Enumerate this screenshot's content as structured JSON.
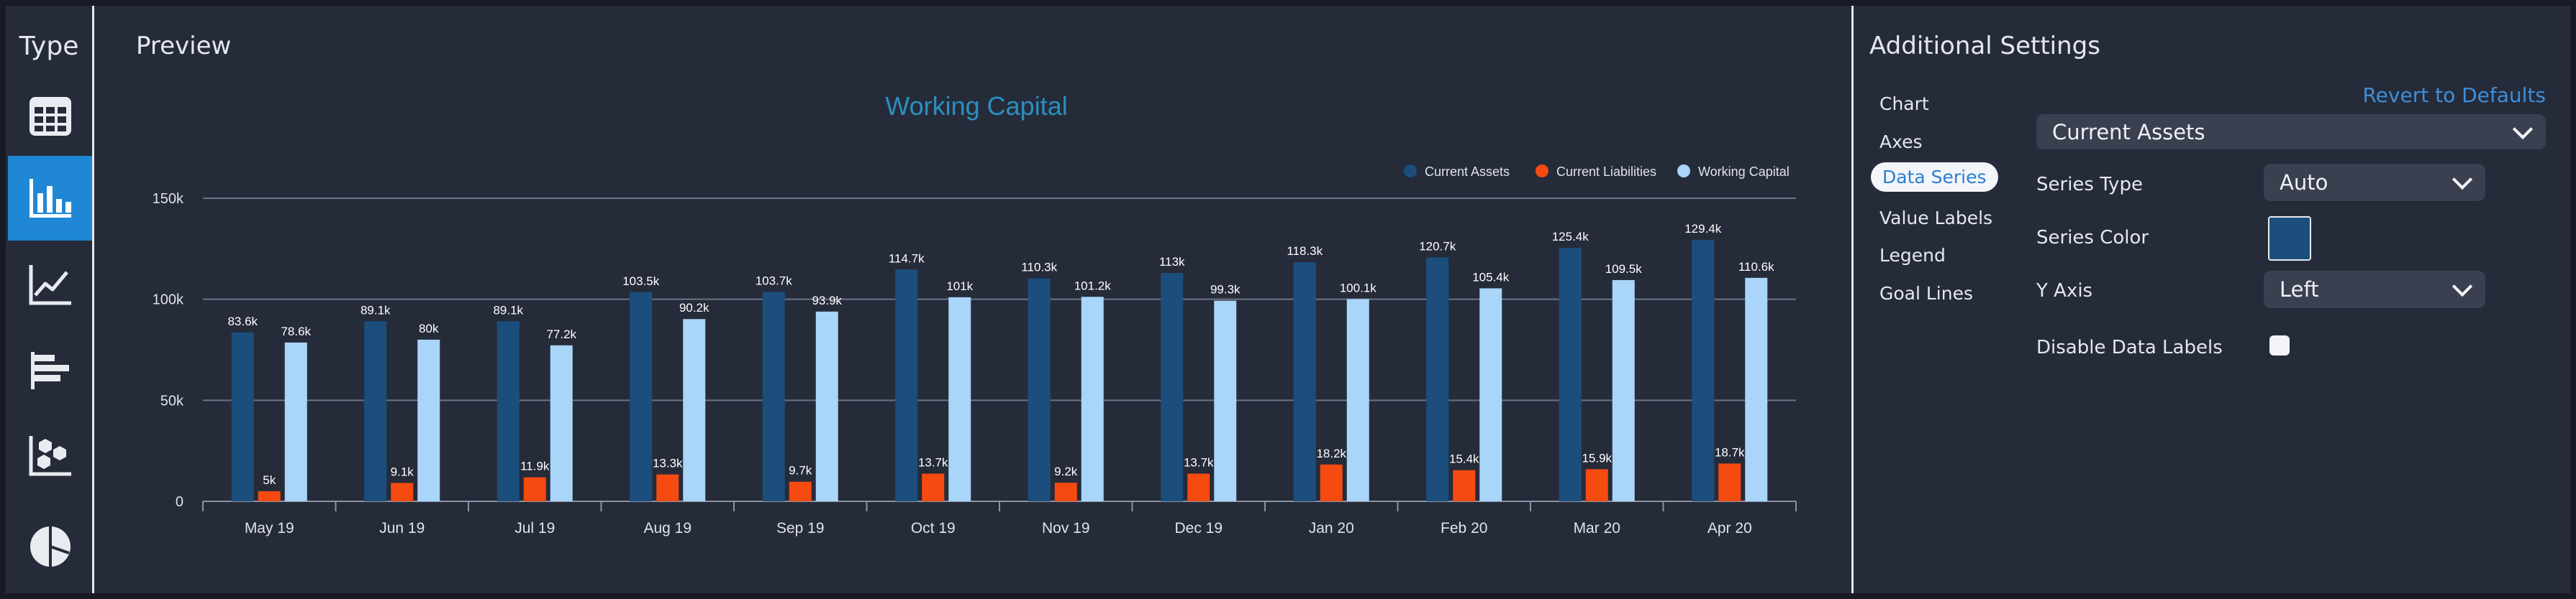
{
  "type_panel": {
    "title": "Type",
    "items": [
      {
        "name": "table-chart-icon",
        "active": false
      },
      {
        "name": "bar-chart-icon",
        "active": true
      },
      {
        "name": "line-chart-icon",
        "active": false
      },
      {
        "name": "horizontal-bar-chart-icon",
        "active": false
      },
      {
        "name": "scatter-chart-icon",
        "active": false
      },
      {
        "name": "pie-chart-icon",
        "active": false
      }
    ]
  },
  "preview": {
    "title": "Preview"
  },
  "chart_data": {
    "type": "bar",
    "title": "Working Capital",
    "categories": [
      "May 19",
      "Jun 19",
      "Jul 19",
      "Aug 19",
      "Sep 19",
      "Oct 19",
      "Nov 19",
      "Dec 19",
      "Jan 20",
      "Feb 20",
      "Mar 20",
      "Apr 20"
    ],
    "series": [
      {
        "name": "Current Assets",
        "color": "#1b4e7c",
        "values": [
          83.6,
          89.1,
          89.1,
          103.5,
          103.7,
          114.7,
          110.3,
          113,
          118.3,
          120.7,
          125.4,
          129.4
        ],
        "labels": [
          "83.6k",
          "89.1k",
          "89.1k",
          "103.5k",
          "103.7k",
          "114.7k",
          "110.3k",
          "113k",
          "118.3k",
          "120.7k",
          "125.4k",
          "129.4k"
        ]
      },
      {
        "name": "Current Liabilities",
        "color": "#f54a10",
        "values": [
          5,
          9.1,
          11.9,
          13.3,
          9.7,
          13.7,
          9.2,
          13.7,
          18.2,
          15.4,
          15.9,
          18.7
        ],
        "labels": [
          "5k",
          "9.1k",
          "11.9k",
          "13.3k",
          "9.7k",
          "13.7k",
          "9.2k",
          "13.7k",
          "18.2k",
          "15.4k",
          "15.9k",
          "18.7k"
        ]
      },
      {
        "name": "Working Capital",
        "color": "#a8d5f8",
        "values": [
          78.6,
          80,
          77.2,
          90.2,
          93.9,
          101,
          101.2,
          99.3,
          100.1,
          105.4,
          109.5,
          110.6
        ],
        "labels": [
          "78.6k",
          "80k",
          "77.2k",
          "90.2k",
          "93.9k",
          "101k",
          "101.2k",
          "99.3k",
          "100.1k",
          "105.4k",
          "109.5k",
          "110.6k"
        ]
      }
    ],
    "yticks": [
      0,
      50,
      100,
      150
    ],
    "ytick_labels": [
      "0",
      "50k",
      "100k",
      "150k"
    ],
    "ylim": [
      0,
      150
    ],
    "legend_position": "top-right",
    "grid": true
  },
  "settings": {
    "title": "Additional Settings",
    "revert_label": "Revert to Defaults",
    "nav": [
      "Chart",
      "Axes",
      "Data Series",
      "Value Labels",
      "Legend",
      "Goal Lines"
    ],
    "active_nav": "Data Series",
    "series_select": "Current Assets",
    "series_type_label": "Series Type",
    "series_type_value": "Auto",
    "series_color_label": "Series Color",
    "series_color": "#1b4e7c",
    "y_axis_label": "Y Axis",
    "y_axis_value": "Left",
    "disable_labels_label": "Disable Data Labels",
    "disable_labels_checked": false
  }
}
